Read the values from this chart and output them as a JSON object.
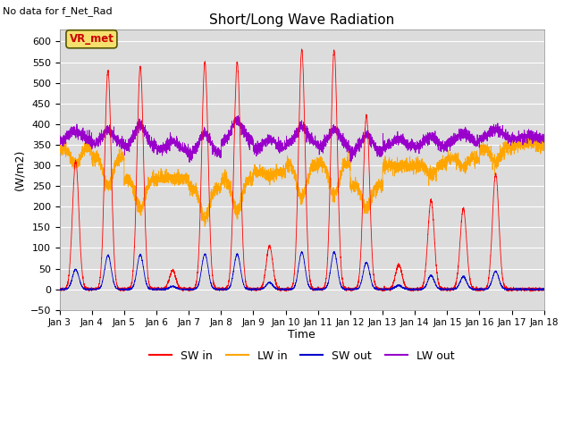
{
  "title": "Short/Long Wave Radiation",
  "ylabel": "(W/m2)",
  "xlabel": "Time",
  "top_left_text": "No data for f_Net_Rad",
  "legend_label": "VR_met",
  "ylim": [
    -50,
    630
  ],
  "colors": {
    "SW_in": "#ff0000",
    "LW_in": "#ffa500",
    "SW_out": "#0000cd",
    "LW_out": "#9900cc"
  },
  "bg_color": "#dcdcdc",
  "legend_entries": [
    "SW in",
    "LW in",
    "SW out",
    "LW out"
  ],
  "x_tick_labels": [
    "Jan 3",
    "Jan 4",
    "Jan 5",
    "Jan 6",
    "Jan 7",
    "Jan 8",
    "Jan 9",
    "Jan 10",
    "Jan 11",
    "Jan 12",
    "Jan 13",
    "Jan 14",
    "Jan 15",
    "Jan 16",
    "Jan 17",
    "Jan 18"
  ],
  "n_days": 15,
  "points_per_day": 288
}
